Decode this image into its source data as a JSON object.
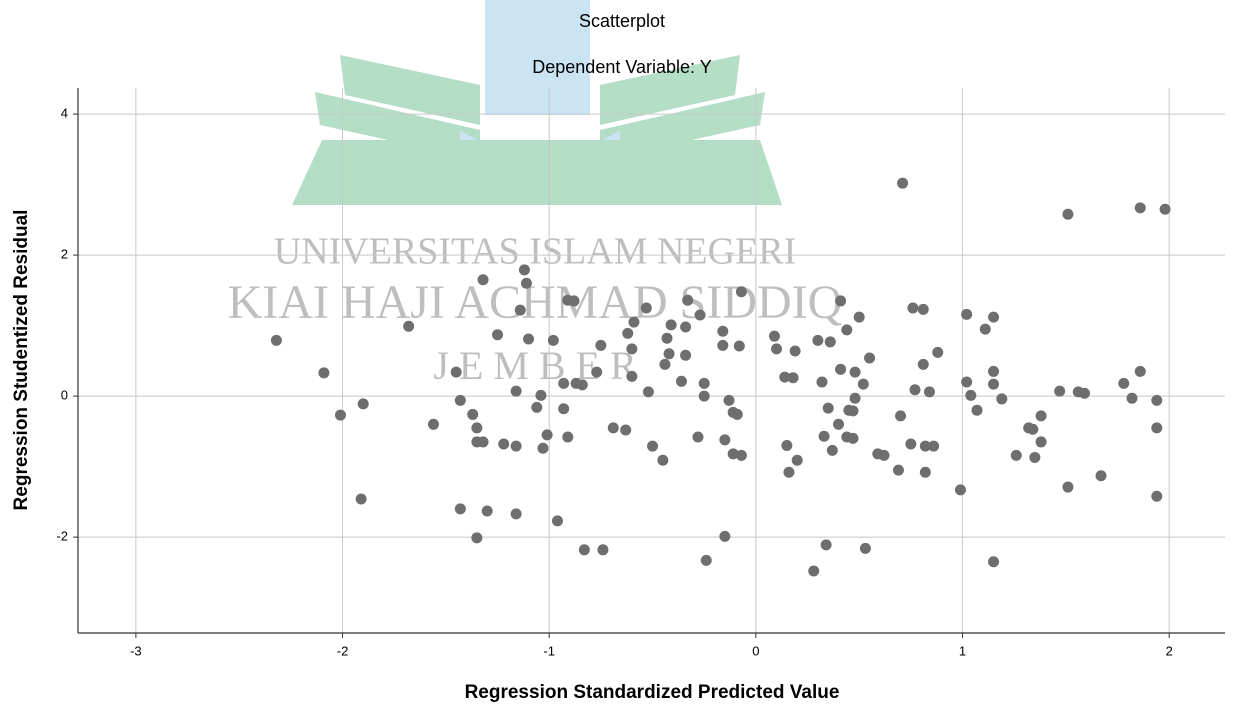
{
  "chart_data": {
    "type": "scatter",
    "title": "Scatterplot",
    "subtitle": "Dependent Variable: Y",
    "x_label": "Regression Standardized Predicted Value",
    "y_label": "Regression Studentized Residual",
    "watermark": [
      "UNIVERSITAS ISLAM NEGERI",
      "KIAI HAJI ACHMAD SIDDIQ",
      "J E M B E R"
    ],
    "color": "#6e6e6e",
    "grid": true,
    "xlim": [
      -3.28,
      2.27
    ],
    "ylim": [
      -3.36,
      4.37
    ],
    "xticks": [
      -3,
      -2,
      -1,
      0,
      1,
      2
    ],
    "yticks": [
      -2,
      0,
      2,
      4
    ],
    "x": [
      -2.32,
      -2.09,
      -2.01,
      -1.9,
      -1.91,
      -1.68,
      -1.56,
      -1.45,
      -1.43,
      -1.43,
      -1.37,
      -1.35,
      -1.35,
      -1.32,
      -1.35,
      -1.32,
      -1.3,
      -1.25,
      -1.22,
      -1.16,
      -1.16,
      -1.16,
      -1.14,
      -1.12,
      -1.11,
      -1.1,
      -1.06,
      -1.04,
      -1.03,
      -1.01,
      -0.98,
      -0.96,
      -0.93,
      -0.93,
      -0.91,
      -0.91,
      -0.88,
      -0.87,
      -0.84,
      -0.83,
      -0.77,
      -0.75,
      -0.74,
      -0.69,
      -0.63,
      -0.62,
      -0.6,
      -0.6,
      -0.59,
      -0.53,
      -0.52,
      -0.5,
      -0.45,
      -0.44,
      -0.43,
      -0.42,
      -0.41,
      -0.36,
      -0.34,
      -0.34,
      -0.33,
      -0.27,
      -0.28,
      -0.25,
      -0.25,
      -0.24,
      -0.16,
      -0.16,
      -0.15,
      -0.15,
      -0.13,
      -0.11,
      -0.11,
      -0.09,
      -0.07,
      -0.07,
      -0.08,
      0.09,
      0.1,
      0.14,
      0.15,
      0.16,
      0.18,
      0.19,
      0.2,
      0.28,
      0.3,
      0.32,
      0.33,
      0.34,
      0.35,
      0.36,
      0.37,
      0.4,
      0.41,
      0.41,
      0.44,
      0.44,
      0.45,
      0.47,
      0.47,
      0.48,
      0.48,
      0.5,
      0.52,
      0.53,
      0.55,
      0.59,
      0.62,
      0.69,
      0.7,
      0.71,
      0.76,
      0.75,
      0.77,
      0.81,
      0.81,
      0.82,
      0.82,
      0.84,
      0.86,
      0.88,
      0.99,
      1.02,
      1.02,
      1.04,
      1.07,
      1.11,
      1.15,
      1.15,
      1.15,
      1.15,
      1.19,
      1.26,
      1.32,
      1.34,
      1.35,
      1.38,
      1.38,
      1.47,
      1.51,
      1.51,
      1.56,
      1.59,
      1.67,
      1.78,
      1.82,
      1.86,
      1.86,
      1.94,
      1.94,
      1.94,
      1.98
    ],
    "y": [
      0.79,
      0.33,
      -0.27,
      -0.11,
      -1.46,
      0.99,
      -0.4,
      0.34,
      -0.06,
      -1.6,
      -0.26,
      -0.45,
      -0.65,
      -0.65,
      -2.01,
      1.65,
      -1.63,
      0.87,
      -0.68,
      -0.71,
      0.07,
      -1.67,
      1.22,
      1.79,
      1.6,
      0.81,
      -0.16,
      0.01,
      -0.74,
      -0.55,
      0.79,
      -1.77,
      -0.18,
      0.18,
      -0.58,
      1.36,
      1.35,
      0.18,
      0.16,
      -2.18,
      0.34,
      0.72,
      -2.18,
      -0.45,
      -0.48,
      0.89,
      0.67,
      0.28,
      1.05,
      1.25,
      0.06,
      -0.71,
      -0.91,
      0.45,
      0.82,
      0.6,
      1.01,
      0.21,
      0.98,
      0.58,
      1.36,
      1.15,
      -0.58,
      0.18,
      0.0,
      -2.33,
      0.72,
      0.92,
      -0.62,
      -1.99,
      -0.06,
      -0.23,
      -0.82,
      -0.26,
      -0.84,
      1.48,
      0.71,
      0.85,
      0.67,
      0.27,
      -0.7,
      -1.08,
      0.26,
      0.64,
      -0.91,
      -2.48,
      0.79,
      0.2,
      -0.57,
      -2.11,
      -0.17,
      0.77,
      -0.77,
      -0.4,
      1.35,
      0.38,
      -0.58,
      0.94,
      -0.2,
      -0.21,
      -0.6,
      -0.03,
      0.34,
      1.12,
      0.17,
      -2.16,
      0.54,
      -0.82,
      -0.84,
      -1.05,
      -0.28,
      3.02,
      1.25,
      -0.68,
      0.09,
      1.23,
      0.45,
      -0.71,
      -1.08,
      0.06,
      -0.71,
      0.62,
      -1.33,
      1.16,
      0.2,
      0.01,
      -0.2,
      0.95,
      1.12,
      0.35,
      0.17,
      -2.35,
      -0.04,
      -0.84,
      -0.45,
      -0.47,
      -0.87,
      -0.28,
      -0.65,
      0.07,
      2.58,
      -1.29,
      0.06,
      0.04,
      -1.13,
      0.18,
      -0.03,
      2.67,
      0.35,
      -0.06,
      -0.45,
      -1.42,
      2.65
    ]
  }
}
